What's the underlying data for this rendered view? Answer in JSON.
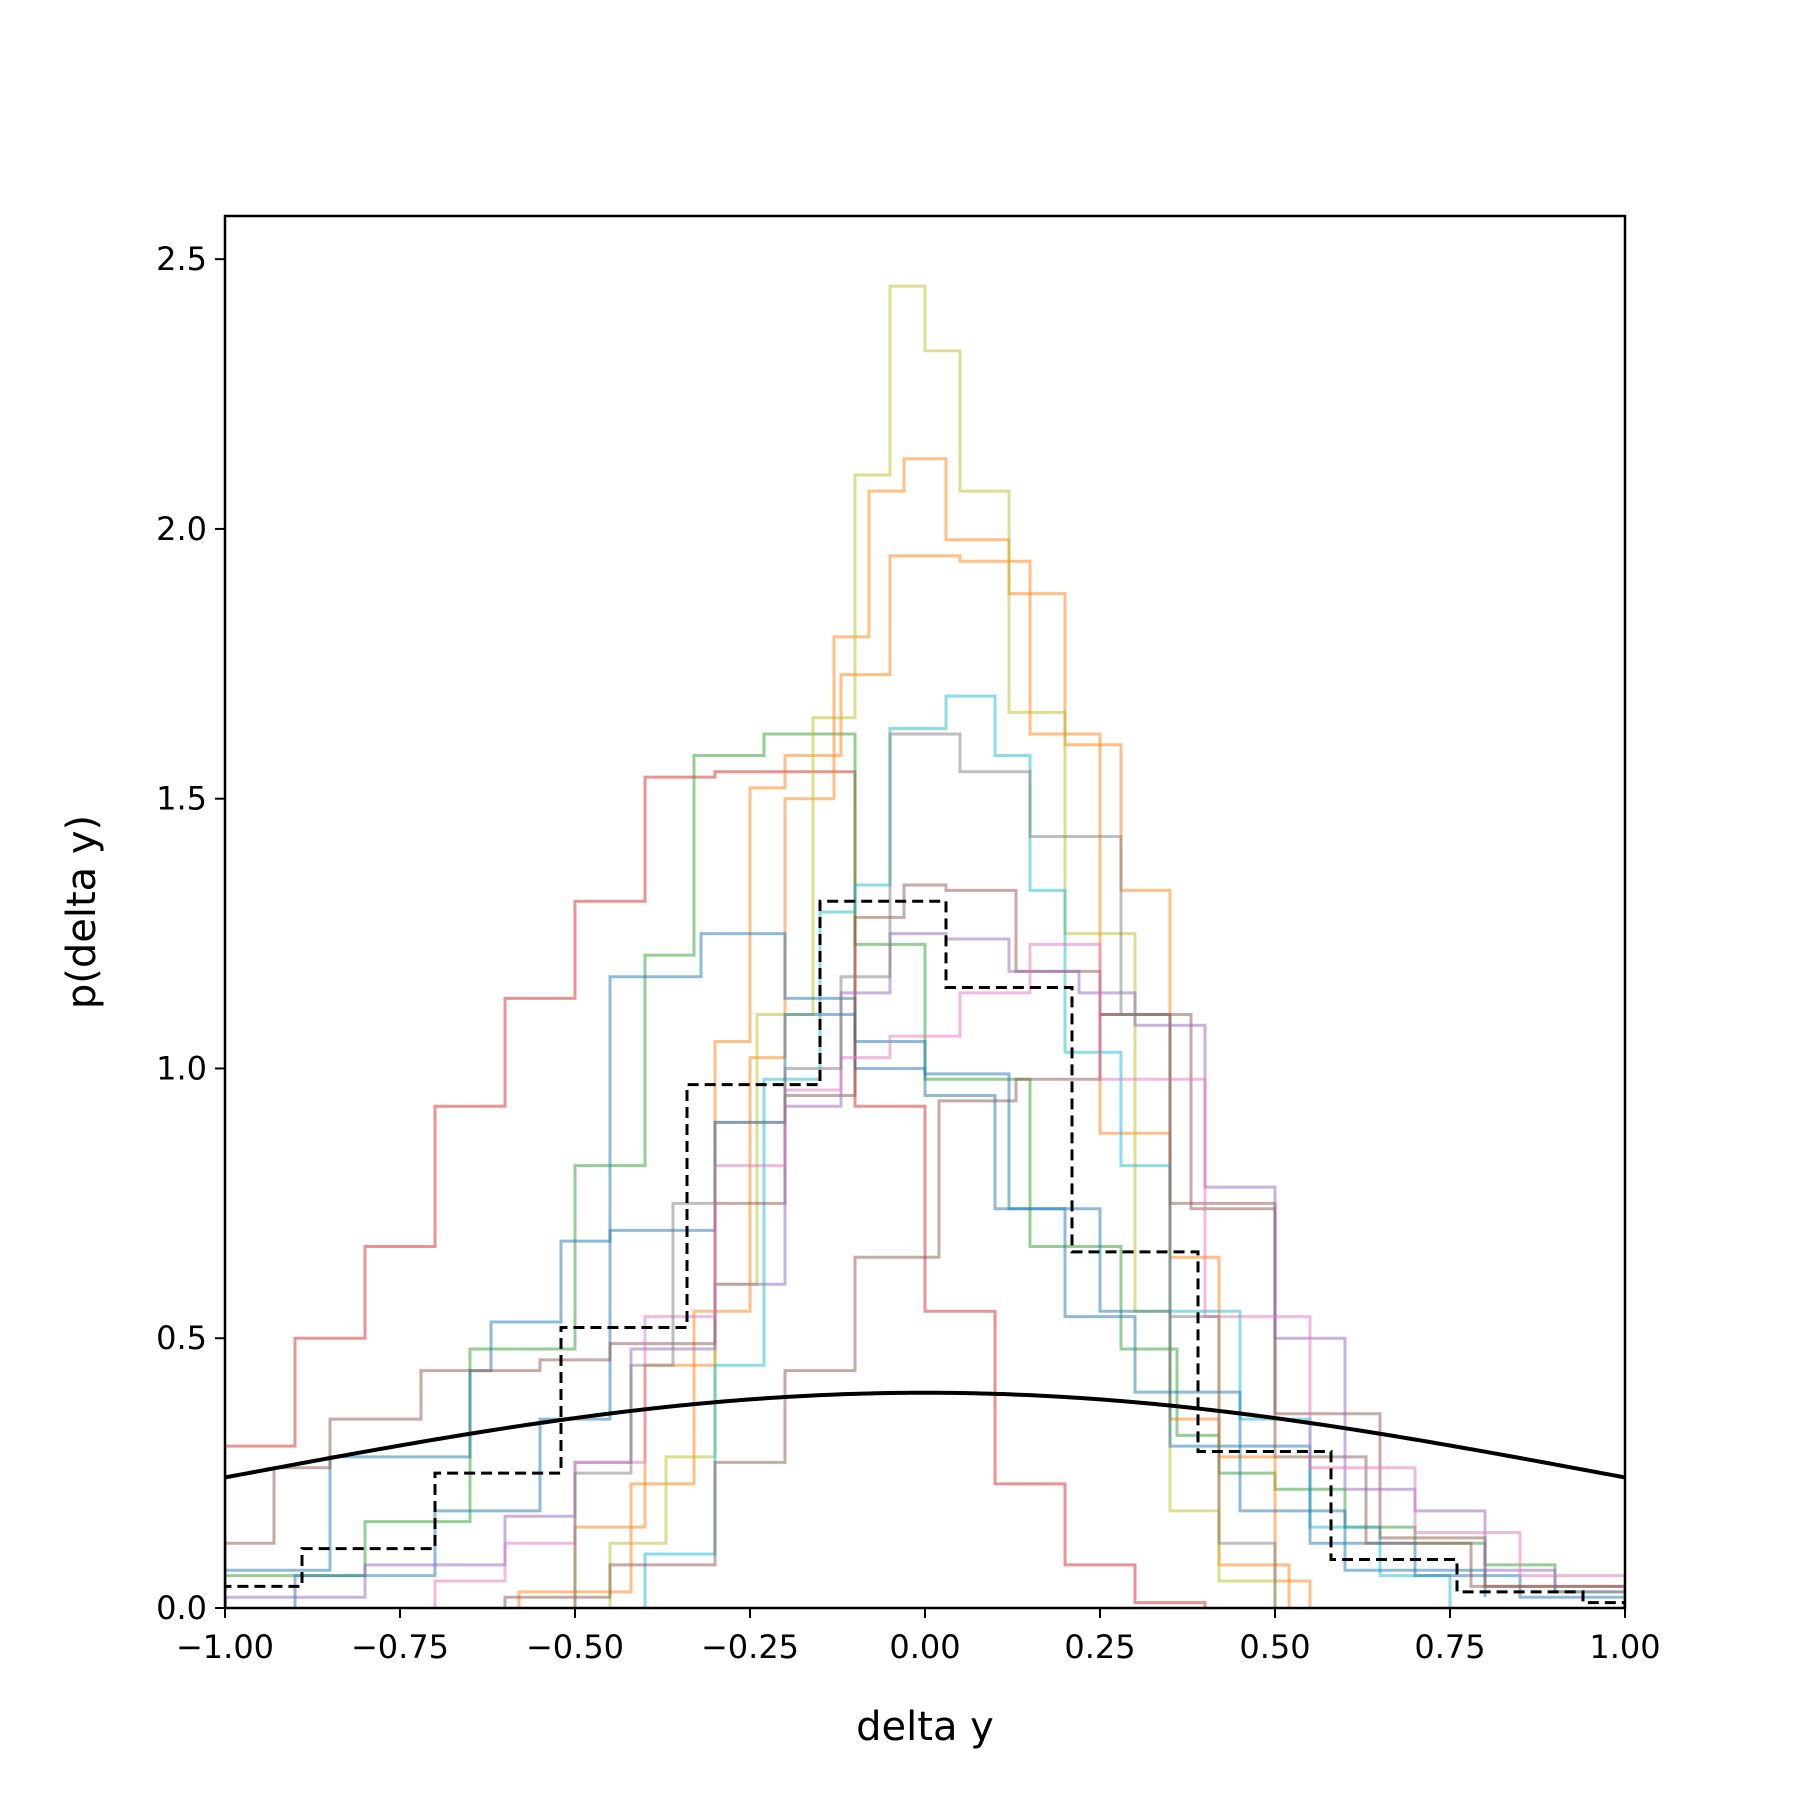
{
  "chart_data": {
    "type": "line",
    "title": "",
    "xlabel": "delta y",
    "ylabel": "p(delta y)",
    "xlim": [
      -1.0,
      1.0
    ],
    "ylim": [
      0.0,
      2.58
    ],
    "x_ticks": [
      -1.0,
      -0.75,
      -0.5,
      -0.25,
      0.0,
      0.25,
      0.5,
      0.75,
      1.0
    ],
    "x_tick_labels": [
      "−1.00",
      "−0.75",
      "−0.50",
      "−0.25",
      "0.00",
      "0.25",
      "0.50",
      "0.75",
      "1.00"
    ],
    "y_ticks": [
      0.0,
      0.5,
      1.0,
      1.5,
      2.0,
      2.5
    ],
    "y_tick_labels": [
      "0.0",
      "0.5",
      "1.0",
      "1.5",
      "2.0",
      "2.5"
    ],
    "grid": false,
    "legend": "none",
    "histograms": [
      {
        "color": "#d62728",
        "edges": [
          -1.0,
          -0.9,
          -0.8,
          -0.7,
          -0.6,
          -0.5,
          -0.4,
          -0.3,
          -0.2,
          -0.1,
          0.0,
          0.1,
          0.2,
          0.3,
          0.4
        ],
        "values": [
          0.3,
          0.5,
          0.67,
          0.93,
          1.13,
          1.31,
          1.54,
          1.55,
          1.55,
          0.93,
          0.55,
          0.23,
          0.08,
          0.01
        ]
      },
      {
        "color": "#2ca02c",
        "edges": [
          -1.0,
          -0.8,
          -0.65,
          -0.5,
          -0.4,
          -0.33,
          -0.23,
          -0.1,
          0.0,
          0.15,
          0.28,
          0.36,
          0.42,
          0.5,
          0.6,
          0.7,
          0.8,
          0.9,
          1.0
        ],
        "values": [
          0.06,
          0.16,
          0.48,
          0.82,
          1.21,
          1.58,
          1.62,
          1.23,
          0.98,
          0.67,
          0.48,
          0.32,
          0.25,
          0.22,
          0.15,
          0.12,
          0.08,
          0.03
        ]
      },
      {
        "color": "#ff7f0e",
        "edges": [
          -0.58,
          -0.42,
          -0.33,
          -0.25,
          -0.2,
          -0.13,
          -0.08,
          -0.03,
          0.03,
          0.12,
          0.2,
          0.28,
          0.35,
          0.42,
          0.5,
          0.55
        ],
        "values": [
          0.03,
          0.23,
          0.55,
          1.02,
          1.5,
          1.8,
          2.07,
          2.13,
          1.98,
          1.88,
          1.6,
          1.33,
          0.65,
          0.28,
          0.05
        ]
      },
      {
        "color": "#ff7f0e",
        "edges": [
          -0.5,
          -0.4,
          -0.3,
          -0.25,
          -0.2,
          -0.12,
          -0.05,
          0.05,
          0.15,
          0.25,
          0.35,
          0.42,
          0.52
        ],
        "values": [
          0.15,
          0.45,
          1.05,
          1.52,
          1.58,
          1.73,
          1.95,
          1.94,
          1.62,
          0.88,
          0.35,
          0.08
        ]
      },
      {
        "color": "#bcbd22",
        "edges": [
          -0.45,
          -0.37,
          -0.3,
          -0.24,
          -0.16,
          -0.1,
          -0.05,
          0.0,
          0.05,
          0.12,
          0.2,
          0.3,
          0.35,
          0.42,
          0.5
        ],
        "values": [
          0.12,
          0.28,
          0.6,
          1.1,
          1.65,
          2.1,
          2.45,
          2.33,
          2.07,
          1.66,
          1.25,
          0.55,
          0.18,
          0.05
        ]
      },
      {
        "color": "#17becf",
        "edges": [
          -0.4,
          -0.3,
          -0.23,
          -0.15,
          -0.1,
          -0.05,
          0.03,
          0.1,
          0.15,
          0.2,
          0.28,
          0.35,
          0.45,
          0.55,
          0.65,
          0.75
        ],
        "values": [
          0.1,
          0.45,
          0.98,
          1.29,
          1.34,
          1.63,
          1.69,
          1.58,
          1.33,
          1.03,
          0.82,
          0.55,
          0.35,
          0.15,
          0.06
        ]
      },
      {
        "color": "#1f77b4",
        "edges": [
          -1.0,
          -0.85,
          -0.65,
          -0.62,
          -0.52,
          -0.45,
          -0.32,
          -0.2,
          -0.1,
          0.0,
          0.12,
          0.25,
          0.35,
          0.55,
          0.7,
          0.85,
          1.0
        ],
        "values": [
          0.07,
          0.28,
          0.44,
          0.53,
          0.68,
          1.17,
          1.25,
          1.13,
          1.05,
          0.99,
          0.74,
          0.55,
          0.3,
          0.12,
          0.06,
          0.02
        ]
      },
      {
        "color": "#1f77b4",
        "edges": [
          -0.9,
          -0.7,
          -0.55,
          -0.45,
          -0.3,
          -0.2,
          -0.1,
          0.0,
          0.1,
          0.2,
          0.3,
          0.45,
          0.6,
          0.8
        ],
        "values": [
          0.06,
          0.18,
          0.35,
          0.7,
          0.9,
          1.1,
          1.0,
          0.95,
          0.74,
          0.54,
          0.4,
          0.18,
          0.07,
          0.02
        ]
      },
      {
        "color": "#8c564b",
        "edges": [
          -1.0,
          -0.93,
          -0.85,
          -0.72,
          -0.55,
          -0.45,
          -0.3,
          -0.2,
          -0.1,
          -0.03,
          0.03,
          0.13,
          0.25,
          0.35,
          0.5,
          0.63,
          0.78,
          1.0
        ],
        "values": [
          0.12,
          0.26,
          0.35,
          0.44,
          0.46,
          0.49,
          0.75,
          0.95,
          1.28,
          1.34,
          1.33,
          1.18,
          1.1,
          0.75,
          0.28,
          0.12,
          0.04
        ]
      },
      {
        "color": "#8c564b",
        "edges": [
          -0.6,
          -0.45,
          -0.3,
          -0.2,
          -0.1,
          0.02,
          0.13,
          0.25,
          0.38,
          0.5,
          0.65,
          0.8,
          1.0
        ],
        "values": [
          0.02,
          0.08,
          0.27,
          0.44,
          0.65,
          0.94,
          0.98,
          1.1,
          0.74,
          0.36,
          0.13,
          0.04
        ]
      },
      {
        "color": "#9467bd",
        "edges": [
          -1.0,
          -0.8,
          -0.6,
          -0.5,
          -0.42,
          -0.3,
          -0.2,
          -0.12,
          -0.05,
          0.03,
          0.12,
          0.22,
          0.3,
          0.4,
          0.5,
          0.6,
          0.7,
          0.8,
          0.9,
          1.0
        ],
        "values": [
          0.02,
          0.08,
          0.17,
          0.27,
          0.48,
          0.6,
          0.93,
          1.14,
          1.25,
          1.24,
          1.18,
          1.14,
          1.08,
          0.78,
          0.5,
          0.22,
          0.18,
          0.07,
          0.03
        ]
      },
      {
        "color": "#e377c2",
        "edges": [
          -0.7,
          -0.6,
          -0.5,
          -0.4,
          -0.3,
          -0.2,
          -0.12,
          -0.05,
          0.05,
          0.15,
          0.25,
          0.4,
          0.55,
          0.7,
          0.85,
          1.0
        ],
        "values": [
          0.05,
          0.12,
          0.27,
          0.54,
          0.82,
          0.96,
          1.02,
          1.06,
          1.14,
          1.23,
          0.98,
          0.54,
          0.26,
          0.14,
          0.06
        ]
      },
      {
        "color": "#7f7f7f",
        "edges": [
          -0.5,
          -0.42,
          -0.36,
          -0.3,
          -0.2,
          -0.12,
          -0.05,
          0.05,
          0.15,
          0.28,
          0.35,
          0.42,
          0.5
        ],
        "values": [
          0.25,
          0.45,
          0.75,
          0.9,
          1.0,
          1.17,
          1.62,
          1.55,
          1.43,
          1.1,
          0.54,
          0.12
        ]
      },
      {
        "color": "#000000",
        "dashed": true,
        "edges": [
          -1.0,
          -0.89,
          -0.7,
          -0.52,
          -0.34,
          -0.15,
          0.03,
          0.21,
          0.39,
          0.58,
          0.76,
          0.94,
          1.0
        ],
        "values": [
          0.04,
          0.11,
          0.25,
          0.52,
          0.97,
          1.31,
          1.15,
          0.66,
          0.29,
          0.09,
          0.03,
          0.01
        ]
      }
    ],
    "reference_curve": {
      "type": "normal_pdf",
      "mean": 0.0,
      "std": 1.0,
      "color": "#000000"
    }
  }
}
